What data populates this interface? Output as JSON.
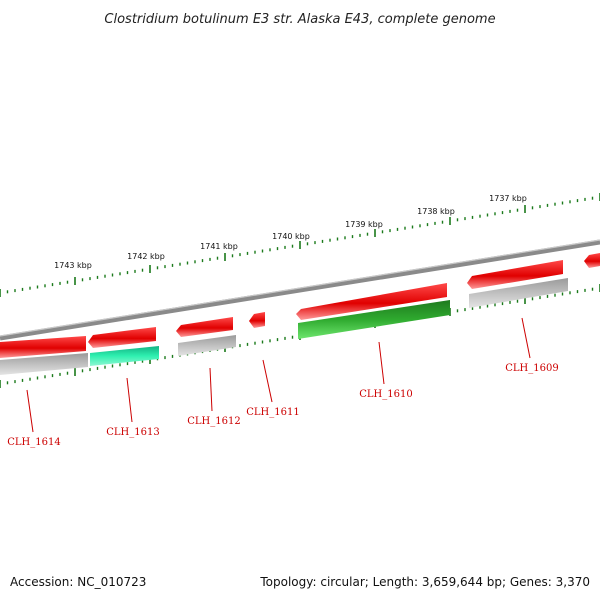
{
  "title": "Clostridium botulinum E3 str. Alaska E43, complete genome",
  "footer": {
    "accession": "Accession: NC_010723",
    "summary": "Topology: circular; Length: 3,659,644 bp; Genes: 3,370"
  },
  "colors": {
    "backbone": "#8a8a8a",
    "forward_cds": "#ee1111",
    "reverse_cds": "#aaaaaa",
    "reverse_highlight_green": "#2e9e2e",
    "reverse_highlight_teal": "#22d9a0",
    "tick_mark": "#1b7a1b",
    "label": "#cc0000"
  },
  "kbp_labels": [
    "1743 kbp",
    "1742 kbp",
    "1741 kbp",
    "1740 kbp",
    "1739 kbp",
    "1738 kbp",
    "1737 kbp"
  ],
  "gene_labels": [
    "CLH_1614",
    "CLH_1613",
    "CLH_1612",
    "CLH_1611",
    "CLH_1610",
    "CLH_1609"
  ]
}
